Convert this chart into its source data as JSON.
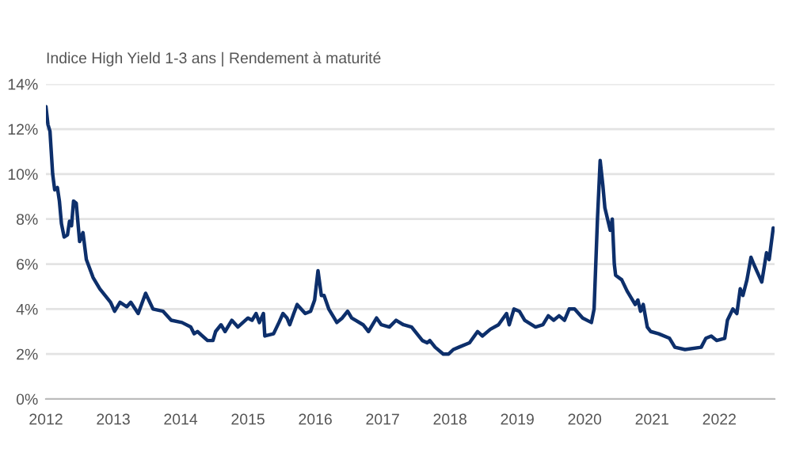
{
  "chart_data": {
    "type": "line",
    "title": "Indice High Yield 1-3 ans | Rendement à maturité",
    "xlim": [
      2012,
      2022.82
    ],
    "xticks": [
      2012,
      2013,
      2014,
      2015,
      2016,
      2017,
      2018,
      2019,
      2020,
      2021,
      2022
    ],
    "ylim": [
      0,
      14
    ],
    "yticks": [
      {
        "value": 0,
        "label": "0%"
      },
      {
        "value": 2,
        "label": "2%"
      },
      {
        "value": 4,
        "label": "4%"
      },
      {
        "value": 6,
        "label": "6%"
      },
      {
        "value": 8,
        "label": "8%"
      },
      {
        "value": 10,
        "label": "10%"
      },
      {
        "value": 12,
        "label": "12%"
      },
      {
        "value": 14,
        "label": "14%"
      }
    ],
    "grid": "y",
    "marker": "none",
    "line_style": "solid",
    "series": [
      {
        "color": "#0d2f6b",
        "x": [
          2012.0,
          2012.03,
          2012.06,
          2012.1,
          2012.13,
          2012.17,
          2012.2,
          2012.23,
          2012.27,
          2012.32,
          2012.35,
          2012.38,
          2012.41,
          2012.45,
          2012.5,
          2012.55,
          2012.6,
          2012.7,
          2012.8,
          2012.96,
          2013.02,
          2013.1,
          2013.2,
          2013.26,
          2013.37,
          2013.48,
          2013.59,
          2013.74,
          2013.86,
          2014.02,
          2014.15,
          2014.2,
          2014.25,
          2014.4,
          2014.48,
          2014.52,
          2014.6,
          2014.66,
          2014.76,
          2014.85,
          2015.0,
          2015.06,
          2015.12,
          2015.17,
          2015.23,
          2015.25,
          2015.38,
          2015.46,
          2015.52,
          2015.58,
          2015.62,
          2015.68,
          2015.73,
          2015.85,
          2015.93,
          2015.99,
          2016.04,
          2016.09,
          2016.13,
          2016.2,
          2016.28,
          2016.32,
          2016.4,
          2016.48,
          2016.54,
          2016.71,
          2016.79,
          2016.91,
          2016.98,
          2017.1,
          2017.2,
          2017.31,
          2017.43,
          2017.51,
          2017.59,
          2017.66,
          2017.7,
          2017.78,
          2017.9,
          2017.98,
          2018.05,
          2018.13,
          2018.29,
          2018.41,
          2018.48,
          2018.6,
          2018.72,
          2018.84,
          2018.88,
          2018.95,
          2019.03,
          2019.11,
          2019.27,
          2019.38,
          2019.46,
          2019.54,
          2019.62,
          2019.7,
          2019.77,
          2019.85,
          2019.97,
          2020.1,
          2020.14,
          2020.19,
          2020.23,
          2020.27,
          2020.3,
          2020.34,
          2020.38,
          2020.41,
          2020.44,
          2020.46,
          2020.55,
          2020.63,
          2020.75,
          2020.79,
          2020.83,
          2020.87,
          2020.93,
          2020.98,
          2021.1,
          2021.26,
          2021.34,
          2021.49,
          2021.73,
          2021.8,
          2021.88,
          2021.96,
          2022.08,
          2022.12,
          2022.2,
          2022.26,
          2022.31,
          2022.35,
          2022.41,
          2022.47,
          2022.51,
          2022.6,
          2022.63,
          2022.7,
          2022.74,
          2022.8
        ],
        "values": [
          13.0,
          12.2,
          11.9,
          10.0,
          9.3,
          9.4,
          8.8,
          7.8,
          7.2,
          7.3,
          7.9,
          7.7,
          8.8,
          8.7,
          7.0,
          7.4,
          6.2,
          5.4,
          4.9,
          4.3,
          3.9,
          4.3,
          4.1,
          4.3,
          3.8,
          4.7,
          4.0,
          3.9,
          3.5,
          3.4,
          3.2,
          2.9,
          3.0,
          2.6,
          2.6,
          3.0,
          3.3,
          3.0,
          3.5,
          3.2,
          3.6,
          3.5,
          3.8,
          3.4,
          3.8,
          2.8,
          2.9,
          3.4,
          3.8,
          3.6,
          3.3,
          3.8,
          4.2,
          3.8,
          3.9,
          4.4,
          5.7,
          4.6,
          4.6,
          4.0,
          3.6,
          3.4,
          3.6,
          3.9,
          3.6,
          3.3,
          3.0,
          3.6,
          3.3,
          3.2,
          3.5,
          3.3,
          3.2,
          2.9,
          2.6,
          2.5,
          2.6,
          2.3,
          2.0,
          2.0,
          2.2,
          2.3,
          2.5,
          3.0,
          2.8,
          3.1,
          3.3,
          3.8,
          3.3,
          4.0,
          3.9,
          3.5,
          3.2,
          3.3,
          3.7,
          3.5,
          3.7,
          3.5,
          4.0,
          4.0,
          3.6,
          3.4,
          4.0,
          8.0,
          10.6,
          9.5,
          8.5,
          8.0,
          7.5,
          8.0,
          6.0,
          5.5,
          5.3,
          4.8,
          4.2,
          4.4,
          3.9,
          4.2,
          3.2,
          3.0,
          2.9,
          2.7,
          2.3,
          2.2,
          2.3,
          2.7,
          2.8,
          2.6,
          2.7,
          3.5,
          4.0,
          3.8,
          4.9,
          4.6,
          5.3,
          6.3,
          6.0,
          5.4,
          5.2,
          6.5,
          6.2,
          7.6
        ]
      }
    ]
  }
}
